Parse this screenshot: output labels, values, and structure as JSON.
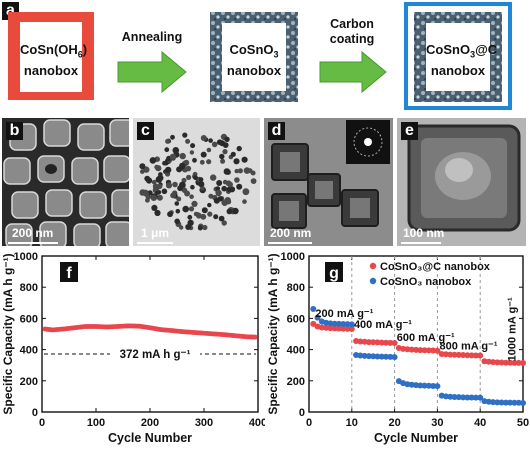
{
  "panel_a": {
    "label": "a",
    "box1": {
      "line1": "CoSn(OH",
      "sub": "6",
      "line1_end": ")",
      "line2": "nanobox"
    },
    "arrow1": "Annealing",
    "box2": {
      "line1": "CoSnO",
      "sub": "3",
      "line2": "nanobox"
    },
    "arrow2": {
      "line1": "Carbon",
      "line2": "coating"
    },
    "box3": {
      "line1": "CoSnO",
      "sub": "3",
      "line1_end": "@C",
      "line2": "nanobox"
    }
  },
  "images": [
    {
      "label": "b",
      "scale": "200 nm"
    },
    {
      "label": "c",
      "scale": "1 μm"
    },
    {
      "label": "d",
      "scale": "200 nm"
    },
    {
      "label": "e",
      "scale": "100 nm"
    }
  ],
  "chart_data": [
    {
      "panel": "f",
      "type": "line",
      "xlabel": "Cycle Number",
      "ylabel": "Specific Capacity (mA h g⁻¹)",
      "xlim": [
        0,
        400
      ],
      "ylim": [
        0,
        1000
      ],
      "xticks": [
        0,
        100,
        200,
        300,
        400
      ],
      "yticks": [
        0,
        200,
        400,
        600,
        800,
        1000
      ],
      "reference_line": {
        "y": 372,
        "label": "372 mA h g⁻¹"
      },
      "series": [
        {
          "color": "#e8474c",
          "x": [
            5,
            20,
            40,
            60,
            80,
            100,
            120,
            140,
            160,
            180,
            200,
            220,
            240,
            260,
            280,
            300,
            320,
            340,
            360,
            380,
            395
          ],
          "y": [
            532,
            526,
            532,
            540,
            548,
            548,
            545,
            548,
            552,
            550,
            540,
            528,
            522,
            515,
            510,
            505,
            500,
            495,
            488,
            482,
            480
          ]
        }
      ]
    },
    {
      "panel": "g",
      "type": "scatter",
      "xlabel": "Cycle Number",
      "ylabel": "Specific Capacity (mA h g⁻¹)",
      "xlim": [
        0,
        50
      ],
      "ylim": [
        0,
        1000
      ],
      "xticks": [
        0,
        10,
        20,
        30,
        40,
        50
      ],
      "yticks": [
        0,
        200,
        400,
        600,
        800,
        1000
      ],
      "legend_position": "top-right",
      "rate_labels": [
        "200 mA g⁻¹",
        "400 mA g⁻¹",
        "600 mA g⁻¹",
        "800 mA g⁻¹",
        "1000 mA g⁻¹"
      ],
      "series": [
        {
          "name": "CoSnO₃@C nanobox",
          "color": "#e8474c",
          "x": [
            1,
            2,
            3,
            4,
            5,
            6,
            7,
            8,
            9,
            10,
            11,
            12,
            13,
            14,
            15,
            16,
            17,
            18,
            19,
            20,
            21,
            22,
            23,
            24,
            25,
            26,
            27,
            28,
            29,
            30,
            31,
            32,
            33,
            34,
            35,
            36,
            37,
            38,
            39,
            40,
            41,
            42,
            43,
            44,
            45,
            46,
            47,
            48,
            49,
            50
          ],
          "y": [
            565,
            548,
            542,
            540,
            538,
            536,
            535,
            534,
            533,
            532,
            455,
            452,
            450,
            448,
            447,
            446,
            445,
            444,
            443,
            442,
            410,
            405,
            402,
            400,
            398,
            397,
            396,
            395,
            394,
            393,
            372,
            370,
            368,
            367,
            366,
            365,
            364,
            363,
            362,
            362,
            325,
            322,
            320,
            318,
            317,
            316,
            316,
            315,
            315,
            314
          ]
        },
        {
          "name": "CoSnO₃ nanobox",
          "color": "#2f6fc4",
          "x": [
            1,
            2,
            3,
            4,
            5,
            6,
            7,
            8,
            9,
            10,
            11,
            12,
            13,
            14,
            15,
            16,
            17,
            18,
            19,
            20,
            21,
            22,
            23,
            24,
            25,
            26,
            27,
            28,
            29,
            30,
            31,
            32,
            33,
            34,
            35,
            36,
            37,
            38,
            39,
            40,
            41,
            42,
            43,
            44,
            45,
            46,
            47,
            48,
            49,
            50
          ],
          "y": [
            660,
            605,
            580,
            572,
            568,
            566,
            565,
            564,
            563,
            562,
            365,
            362,
            360,
            358,
            357,
            356,
            355,
            354,
            353,
            352,
            198,
            185,
            178,
            175,
            172,
            170,
            169,
            168,
            167,
            166,
            105,
            100,
            98,
            96,
            95,
            94,
            93,
            93,
            92,
            92,
            70,
            66,
            63,
            62,
            61,
            60,
            60,
            59,
            59,
            58
          ]
        }
      ]
    }
  ]
}
